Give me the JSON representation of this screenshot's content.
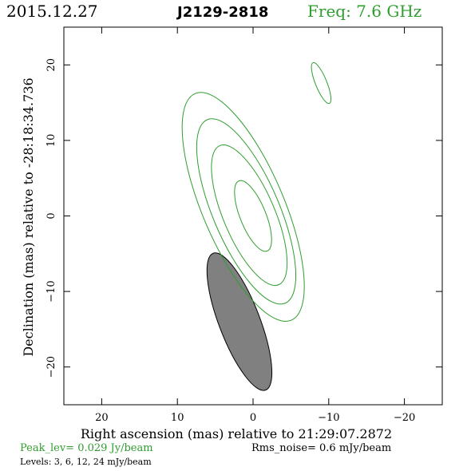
{
  "header": {
    "date": "2015.12.27",
    "source": "J2129-2818",
    "frequency": "Freq: 7.6 GHz"
  },
  "footer": {
    "peak": "Peak_lev=  0.029 Jy/beam",
    "rms": "Rms_noise=  0.6 mJy/beam",
    "levels": "Levels:   3,   6,  12,  24 mJy/beam"
  },
  "colors": {
    "contour": "#2e9e2e",
    "beam_fill": "#808080",
    "frame": "#000000"
  },
  "chart_data": {
    "type": "contour",
    "xlabel": "Right ascension (mas) relative to 21:29:07.2872",
    "ylabel": "Declination (mas) relative to -28:18:34.736",
    "xlim": [
      25,
      -25
    ],
    "ylim": [
      -25,
      25
    ],
    "xticks": [
      20,
      10,
      0,
      -10,
      -20
    ],
    "yticks": [
      20,
      10,
      0,
      -10,
      -20
    ],
    "contour_levels_mJy": [
      3,
      6,
      12,
      24
    ],
    "contours": [
      {
        "level": 3,
        "center": [
          1.3,
          1.2
        ],
        "semi_major": 16.3,
        "semi_minor": 5.4,
        "pa_deg": -23
      },
      {
        "level": 6,
        "center": [
          0.9,
          0.6
        ],
        "semi_major": 13.2,
        "semi_minor": 4.4,
        "pa_deg": -23
      },
      {
        "level": 12,
        "center": [
          0.5,
          0.1
        ],
        "semi_major": 10.0,
        "semi_minor": 3.4,
        "pa_deg": -23
      },
      {
        "level": 24,
        "center": [
          0.0,
          0.0
        ],
        "semi_major": 5.0,
        "semi_minor": 1.7,
        "pa_deg": -22
      },
      {
        "level": 3,
        "center": [
          -9.0,
          17.6
        ],
        "semi_major": 2.9,
        "semi_minor": 0.75,
        "pa_deg": -22
      }
    ],
    "beam": {
      "center": [
        1.8,
        -14.0
      ],
      "semi_major": 9.7,
      "semi_minor": 2.7,
      "pa_deg": -21
    }
  }
}
